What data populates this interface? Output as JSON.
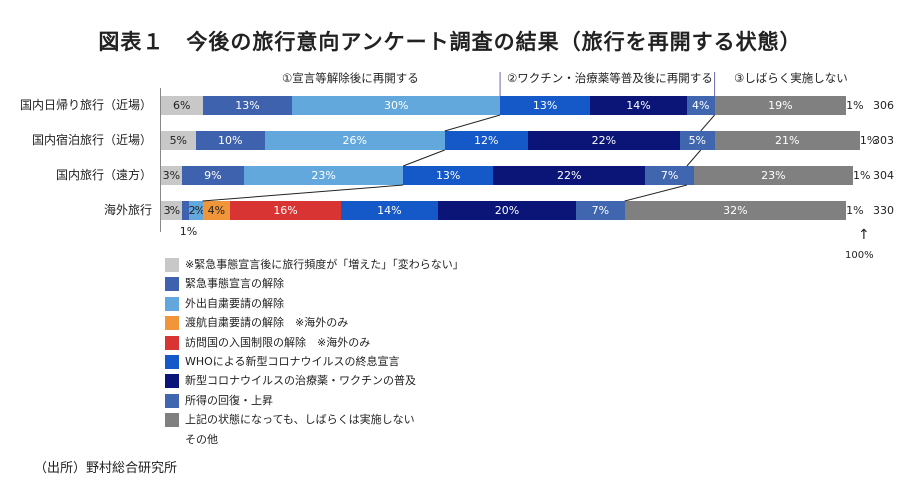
{
  "title": "図表１　今後の旅行意向アンケート調査の結果（旅行を再開する状態）",
  "source": "（出所）野村総合研究所",
  "groups": [
    "①宣言等解除後に再開する",
    "②ワクチン・治療薬等普及後に再開する",
    "③しばらく実施しない"
  ],
  "hundred_label": "100%",
  "chart_data": {
    "type": "bar",
    "orientation": "horizontal",
    "stacked": true,
    "xlim": [
      0,
      100
    ],
    "legend": [
      {
        "name": "※緊急事態宣言後に旅行頻度が「増えた」「変わらない」",
        "color": "#c8c8c8"
      },
      {
        "name": "緊急事態宣言の解除",
        "color": "#3e62ad"
      },
      {
        "name": "外出自粛要請の解除",
        "color": "#62a8dc"
      },
      {
        "name": "渡航自粛要請の解除　※海外のみ",
        "color": "#f0953a"
      },
      {
        "name": "訪問国の入国制限の解除　※海外のみ",
        "color": "#d93434"
      },
      {
        "name": "WHOによる新型コロナウイルスの終息宣言",
        "color": "#1558c8"
      },
      {
        "name": "新型コロナウイルスの治療薬・ワクチンの普及",
        "color": "#0a1577"
      },
      {
        "name": "所得の回復・上昇",
        "color": "#4066b0"
      },
      {
        "name": "上記の状態になっても、しばらくは実施しない",
        "color": "#808080"
      },
      {
        "name": "その他",
        "color": "#ffffff"
      }
    ],
    "rows": [
      {
        "label": "国内日帰り旅行（近場）",
        "n": "306",
        "segments": [
          [
            0,
            6
          ],
          [
            1,
            13
          ],
          [
            2,
            30
          ],
          [
            5,
            13
          ],
          [
            6,
            14
          ],
          [
            7,
            4
          ],
          [
            8,
            19
          ],
          [
            9,
            1
          ]
        ],
        "connect_left": 49,
        "connect_right": 80
      },
      {
        "label": "国内宿泊旅行（近場）",
        "n": "303",
        "segments": [
          [
            0,
            5
          ],
          [
            1,
            10
          ],
          [
            2,
            26
          ],
          [
            5,
            12
          ],
          [
            6,
            22
          ],
          [
            7,
            5
          ],
          [
            8,
            21
          ],
          [
            9,
            1
          ]
        ],
        "connect_left": 41,
        "connect_right": 78
      },
      {
        "label": "国内旅行（遠方）",
        "n": "304",
        "segments": [
          [
            0,
            3
          ],
          [
            1,
            9
          ],
          [
            2,
            23
          ],
          [
            5,
            13
          ],
          [
            6,
            22
          ],
          [
            7,
            7
          ],
          [
            8,
            23
          ],
          [
            9,
            1
          ]
        ],
        "connect_left": 35,
        "connect_right": 76
      },
      {
        "label": "海外旅行",
        "n": "330",
        "segments": [
          [
            0,
            3
          ],
          [
            1,
            1
          ],
          [
            2,
            2
          ],
          [
            3,
            4
          ],
          [
            4,
            16
          ],
          [
            5,
            14
          ],
          [
            6,
            20
          ],
          [
            7,
            7
          ],
          [
            8,
            32
          ],
          [
            9,
            1
          ]
        ],
        "connect_left": 6,
        "connect_right": 67
      }
    ]
  }
}
